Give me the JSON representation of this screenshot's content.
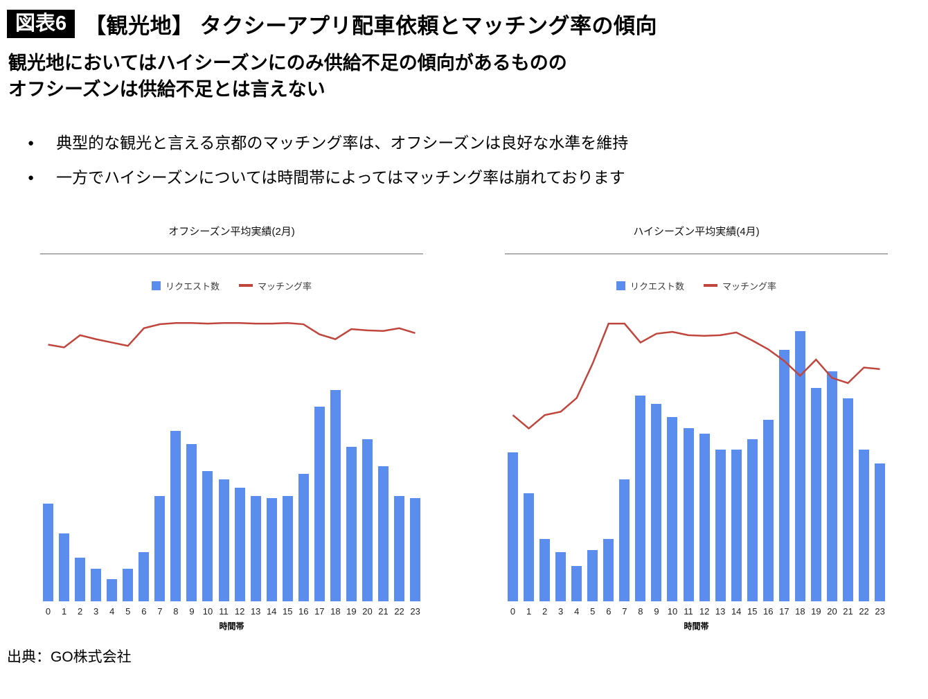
{
  "header": {
    "badge": "図表6",
    "title": "【観光地】 タクシーアプリ配車依頼とマッチング率の傾向"
  },
  "subtitle": {
    "line1": "観光地においてはハイシーズンにのみ供給不足の傾向があるものの",
    "line2": "オフシーズンは供給不足とは言えない"
  },
  "bullets": [
    "典型的な観光と言える京都のマッチング率は、オフシーズンは良好な水準を維持",
    "一方でハイシーズンについては時間帯によってはマッチング率は崩れております"
  ],
  "legend": {
    "bar_label": "リクエスト数",
    "line_label": "マッチング率"
  },
  "colors": {
    "bar": "#5b8def",
    "line": "#c0453c"
  },
  "footer": {
    "source": "出典：GO株式会社"
  },
  "chart_data": [
    {
      "type": "bar",
      "title": "オフシーズン平均実績(2月)",
      "xlabel": "時間帯",
      "note": "combo bar+line, no numeric y-axis shown; values are relative units (tallest bar across both charts = 100)",
      "categories": [
        0,
        1,
        2,
        3,
        4,
        5,
        6,
        7,
        8,
        9,
        10,
        11,
        12,
        13,
        14,
        15,
        16,
        17,
        18,
        19,
        20,
        21,
        22,
        23
      ],
      "series": [
        {
          "name": "リクエスト数",
          "type": "bar",
          "values": [
            36,
            25,
            16,
            12,
            8,
            12,
            18,
            39,
            63,
            58,
            48,
            45,
            42,
            39,
            38,
            39,
            47,
            72,
            78,
            57,
            60,
            50,
            39,
            38
          ]
        },
        {
          "name": "マッチング率",
          "type": "line",
          "values": [
            84.2,
            83.3,
            87.3,
            86.0,
            84.9,
            83.8,
            89.6,
            90.9,
            91.3,
            91.3,
            91.1,
            91.3,
            91.3,
            91.1,
            91.1,
            91.3,
            90.9,
            87.6,
            86.0,
            89.3,
            88.9,
            88.7,
            89.6,
            88.0
          ]
        }
      ]
    },
    {
      "type": "bar",
      "title": "ハイシーズン平均実績(4月)",
      "xlabel": "時間帯",
      "note": "combo bar+line, no numeric y-axis shown; values are relative units (tallest bar across both charts = 100)",
      "categories": [
        0,
        1,
        2,
        3,
        4,
        5,
        6,
        7,
        8,
        9,
        10,
        11,
        12,
        13,
        14,
        15,
        16,
        17,
        18,
        19,
        20,
        21,
        22,
        23
      ],
      "series": [
        {
          "name": "リクエスト数",
          "type": "bar",
          "values": [
            55,
            40,
            23,
            18,
            13,
            19,
            23,
            45,
            76,
            73,
            68,
            64,
            62,
            56,
            56,
            60,
            67,
            93,
            100,
            79,
            85,
            75,
            56,
            51
          ]
        },
        {
          "name": "マッチング率",
          "type": "line",
          "values": [
            61.1,
            56.7,
            61.1,
            62.2,
            66.7,
            78.0,
            91.1,
            91.1,
            84.9,
            87.8,
            88.4,
            87.3,
            87.1,
            87.3,
            88.2,
            85.6,
            82.7,
            78.9,
            74.0,
            79.3,
            73.3,
            71.6,
            76.7,
            76.2
          ]
        }
      ]
    }
  ]
}
